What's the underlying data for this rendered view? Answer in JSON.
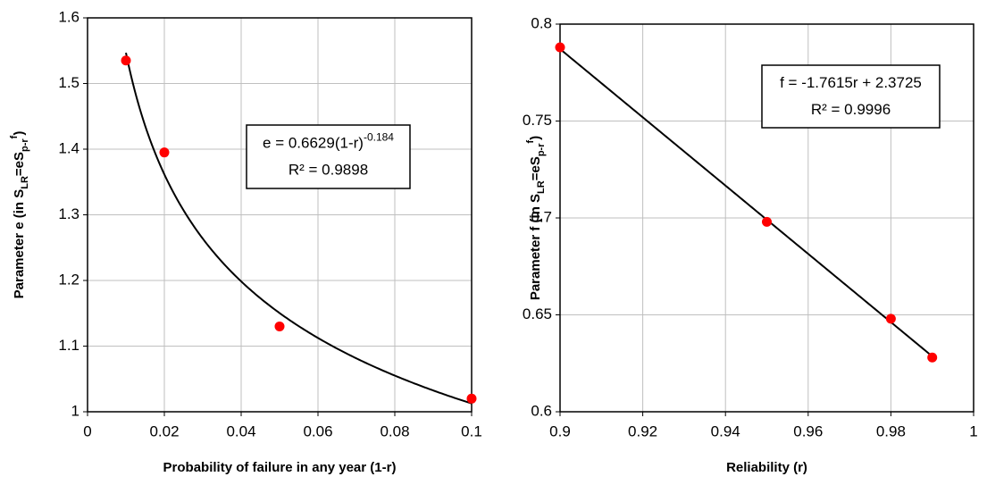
{
  "chart_data": [
    {
      "type": "scatter",
      "x_label": "Probability of failure in any year (1-r)",
      "y_label": [
        "Parameter e (in S",
        "LR",
        "=eS",
        "p-r",
        "f",
        ")"
      ],
      "x": [
        0.01,
        0.02,
        0.05,
        0.1
      ],
      "values": [
        1.535,
        1.395,
        1.13,
        1.02
      ],
      "color": "#ff0000",
      "xlim": [
        0,
        0.1
      ],
      "xticks": [
        0,
        0.02,
        0.04,
        0.06,
        0.08,
        0.1
      ],
      "ylim": [
        1,
        1.6
      ],
      "yticks": [
        1,
        1.1,
        1.2,
        1.3,
        1.4,
        1.5,
        1.6
      ],
      "grid": true,
      "trendline": {
        "type": "power",
        "coefficient": 0.6629,
        "exponent": -0.184,
        "x_range": [
          0.01,
          0.1
        ]
      },
      "annotation": {
        "equation": [
          "e = 0.6629(1-r)",
          "-0.184"
        ],
        "r_squared": "R² = 0.9898"
      }
    },
    {
      "type": "scatter",
      "x_label": "Reliability (r)",
      "y_label": [
        "Parameter f (in S",
        "LR",
        "=eS",
        "p-r",
        "f",
        ")"
      ],
      "x": [
        0.9,
        0.95,
        0.98,
        0.99
      ],
      "values": [
        0.788,
        0.698,
        0.648,
        0.628
      ],
      "color": "#ff0000",
      "xlim": [
        0.9,
        1
      ],
      "xticks": [
        0.9,
        0.92,
        0.94,
        0.96,
        0.98,
        1
      ],
      "ylim": [
        0.6,
        0.8
      ],
      "yticks": [
        0.6,
        0.65,
        0.7,
        0.75,
        0.8
      ],
      "grid": true,
      "trendline": {
        "type": "linear",
        "slope": -1.7615,
        "intercept": 2.3725,
        "x_range": [
          0.9,
          0.99
        ]
      },
      "annotation": {
        "equation": [
          "f = -1.7615r + 2.3725"
        ],
        "r_squared": "R² = 0.9996"
      }
    }
  ]
}
